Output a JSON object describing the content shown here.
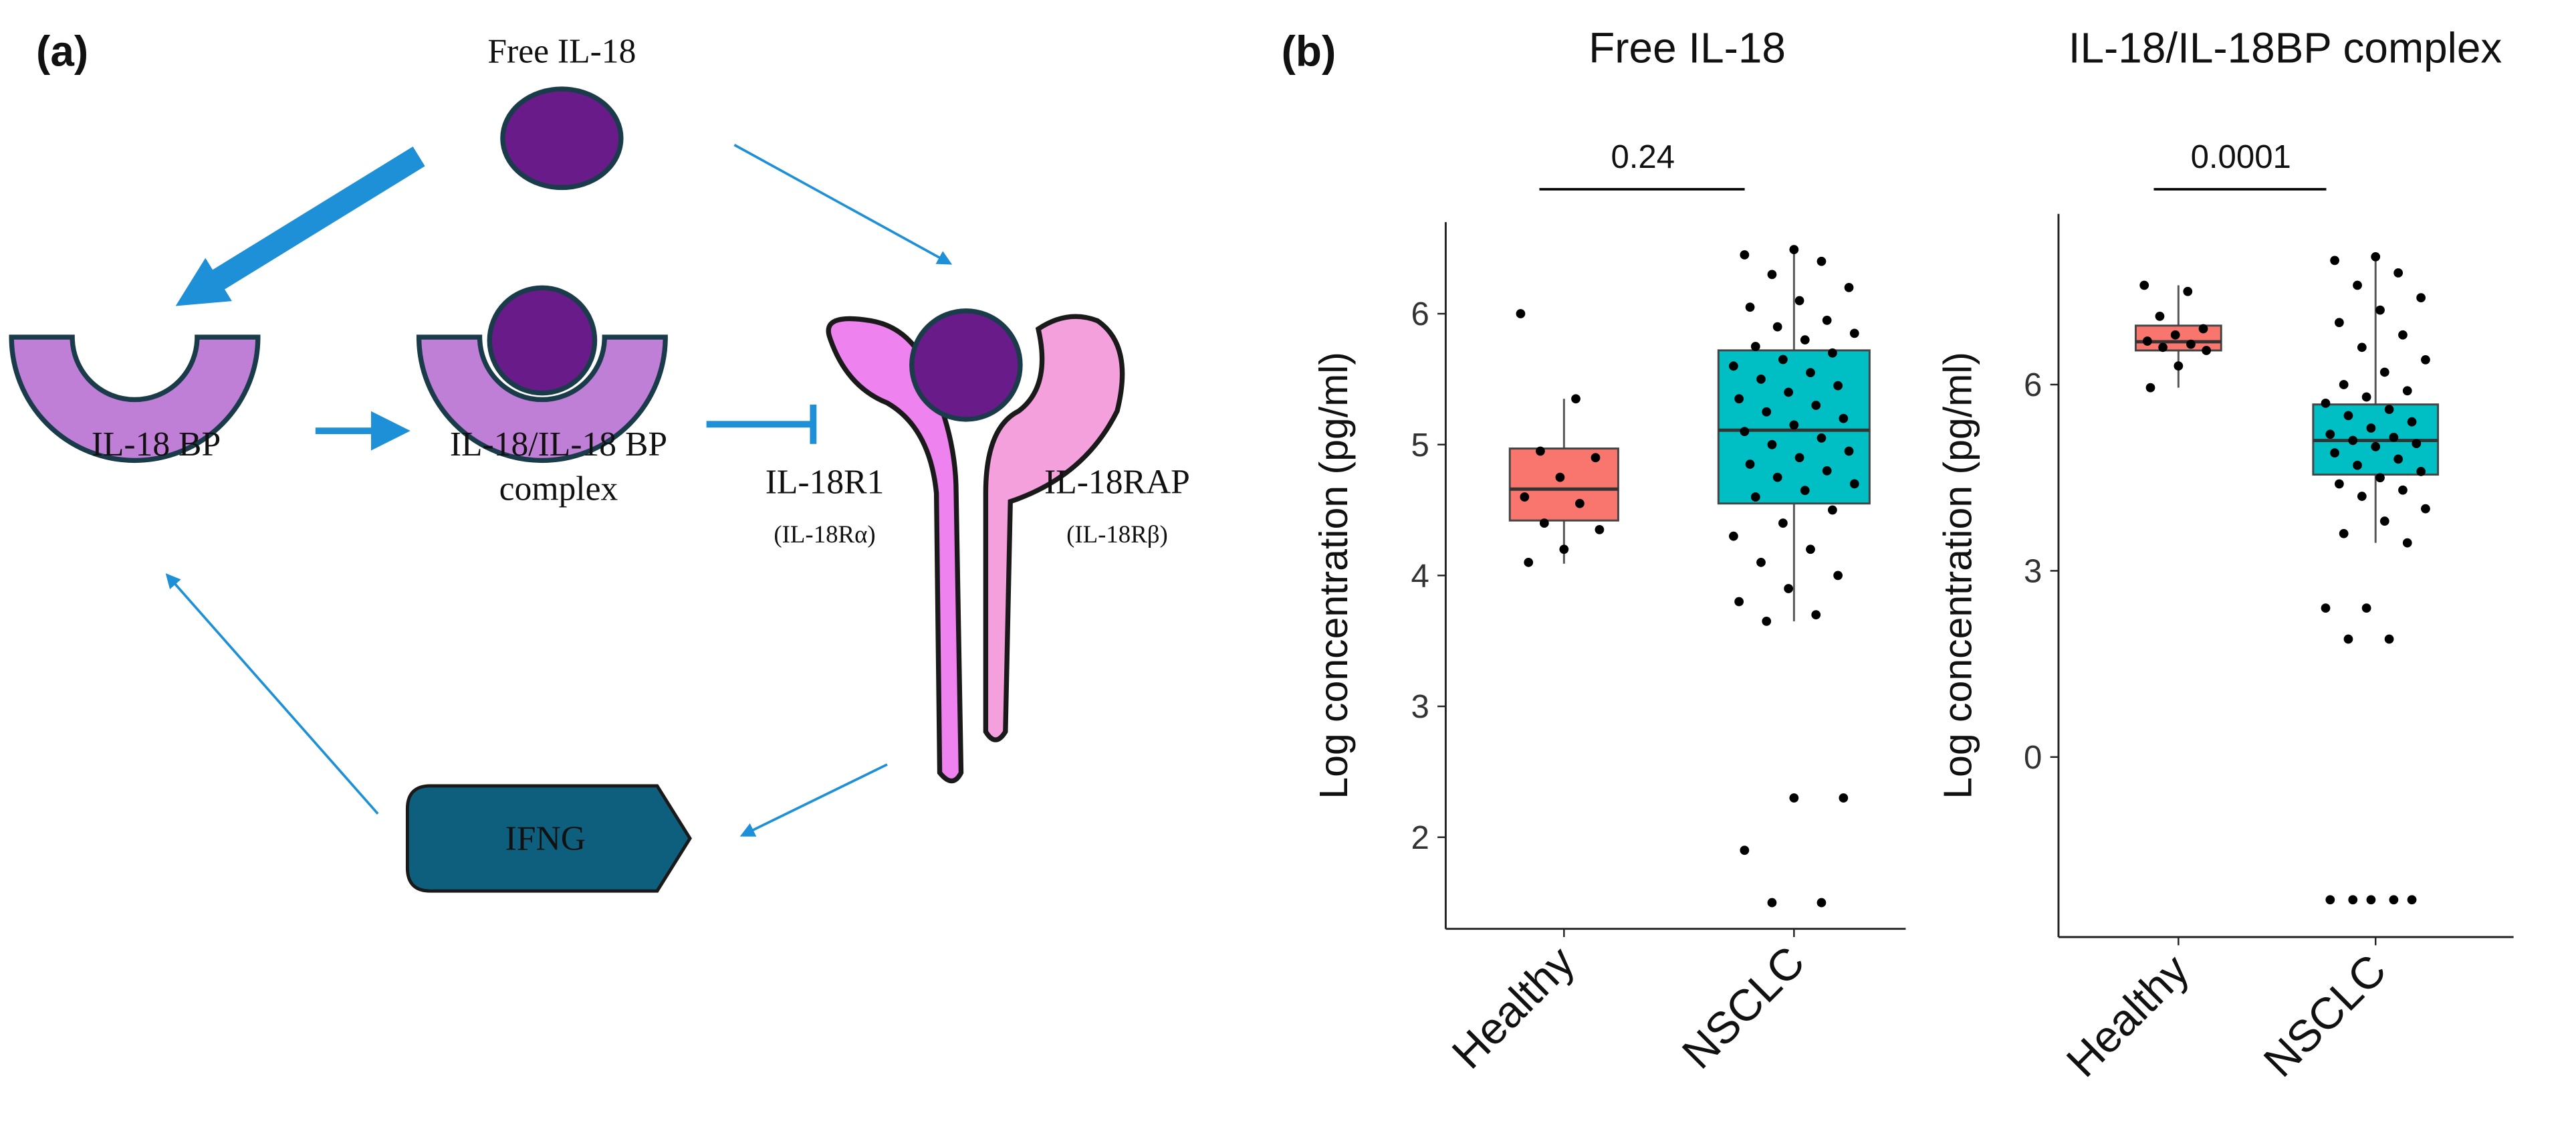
{
  "panel_labels": [
    "(a)",
    "(b)"
  ],
  "diagram": {
    "free": "Free IL-18",
    "bp": "IL-18 BP",
    "complex1": "IL-18/IL-18 BP",
    "complex2": "complex",
    "r1": "IL-18R1",
    "r1alt": "(IL-18Rα)",
    "rap": "IL-18RAP",
    "rapalt": "(IL-18Rβ)",
    "ifng": "IFNG"
  },
  "chart_data": [
    {
      "type": "box",
      "title": "Free IL-18",
      "ylabel": "Log concentration (pg/ml)",
      "categories": [
        "Healthy",
        "NSCLC"
      ],
      "colors": [
        "#f8766d",
        "#00bfc4"
      ],
      "boxes": [
        {
          "min": 4.09,
          "q1": 4.42,
          "median": 4.66,
          "q3": 4.97,
          "max": 5.35
        },
        {
          "min": 3.65,
          "q1": 4.55,
          "median": 5.11,
          "q3": 5.72,
          "max": 6.49
        }
      ],
      "points": [
        [
          6.0,
          5.35,
          4.95,
          4.9,
          4.75,
          4.6,
          4.55,
          4.4,
          4.35,
          4.2,
          4.1
        ],
        [
          6.49,
          6.45,
          6.4,
          6.3,
          6.2,
          6.1,
          6.05,
          5.95,
          5.9,
          5.85,
          5.8,
          5.75,
          5.7,
          5.65,
          5.6,
          5.55,
          5.5,
          5.45,
          5.4,
          5.35,
          5.3,
          5.25,
          5.2,
          5.15,
          5.1,
          5.05,
          5.0,
          4.95,
          4.9,
          4.85,
          4.8,
          4.75,
          4.7,
          4.65,
          4.6,
          4.5,
          4.4,
          4.3,
          4.2,
          4.1,
          4.0,
          3.9,
          3.8,
          3.7,
          3.65,
          2.3,
          2.3,
          1.9,
          1.5,
          1.5
        ]
      ],
      "ylim": [
        1.3,
        6.7
      ],
      "yticks": [
        2,
        3,
        4,
        5,
        6
      ],
      "annotation": "0.24"
    },
    {
      "type": "box",
      "title": "IL-18/IL-18BP  complex",
      "ylabel": "Log concentration (pg/ml)",
      "categories": [
        "Healthy",
        "NSCLC"
      ],
      "colors": [
        "#f8766d",
        "#00bfc4"
      ],
      "boxes": [
        {
          "min": 5.95,
          "q1": 6.55,
          "median": 6.69,
          "q3": 6.95,
          "max": 7.6
        },
        {
          "min": 3.45,
          "q1": 4.55,
          "median": 5.1,
          "q3": 5.68,
          "max": 8.06
        }
      ],
      "points": [
        [
          7.6,
          7.5,
          7.1,
          6.9,
          6.8,
          6.7,
          6.65,
          6.6,
          6.55,
          6.3,
          5.95
        ],
        [
          8.06,
          8.0,
          7.8,
          7.6,
          7.4,
          7.2,
          7.0,
          6.8,
          6.6,
          6.4,
          6.2,
          6.0,
          5.9,
          5.8,
          5.7,
          5.6,
          5.5,
          5.4,
          5.3,
          5.2,
          5.15,
          5.1,
          5.05,
          5.0,
          4.9,
          4.8,
          4.7,
          4.6,
          4.5,
          4.4,
          4.3,
          4.2,
          4.0,
          3.8,
          3.6,
          3.45,
          2.4,
          2.4,
          1.9,
          1.9,
          -2.3,
          -2.3,
          -2.3,
          -2.3,
          -2.3
        ]
      ],
      "ylim": [
        -2.9,
        8.75
      ],
      "yticks": [
        0,
        3,
        6
      ],
      "annotation": "0.0001"
    }
  ]
}
